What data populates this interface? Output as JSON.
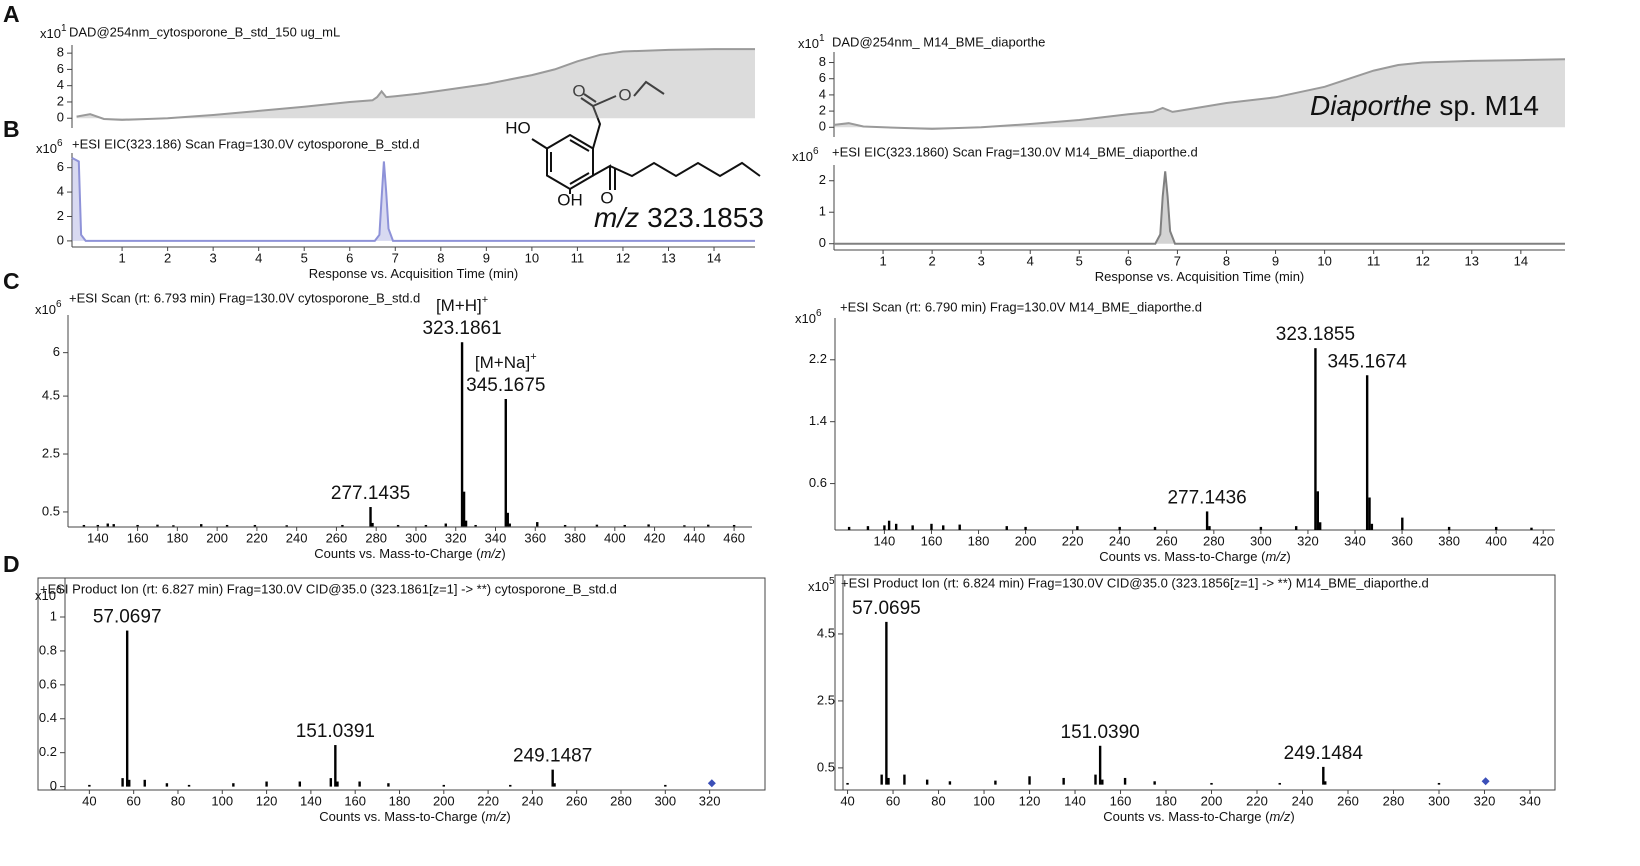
{
  "chart_data": [
    {
      "type": "line",
      "panel": "A",
      "title": "DAD@254nm_cytosporone_B_std_150 ug_mL",
      "scale": "x10",
      "scale_exp": "1",
      "xlim": [
        -0.1,
        14.9
      ],
      "ylim": [
        -1.2,
        9
      ],
      "yticks": [
        0,
        2,
        4,
        6,
        8
      ],
      "color": "#9a9a9a",
      "x": [
        0,
        0.3,
        0.6,
        1,
        2,
        3,
        4,
        5,
        6,
        6.5,
        6.6,
        6.7,
        6.8,
        7,
        7.5,
        8,
        9,
        10,
        10.5,
        11,
        11.5,
        12,
        13,
        14,
        14.9
      ],
      "values": [
        0.2,
        0.5,
        -0.1,
        -0.2,
        0,
        0.4,
        0.9,
        1.4,
        2.0,
        2.2,
        2.6,
        3.3,
        2.6,
        2.7,
        3.0,
        3.4,
        4.2,
        5.3,
        6.0,
        7.0,
        7.8,
        8.2,
        8.4,
        8.5,
        8.5
      ]
    },
    {
      "type": "line",
      "title": "DAD@254nm_ M14_BME_diaporthe",
      "scale": "x10",
      "scale_exp": "1",
      "xlim": [
        0,
        14.9
      ],
      "ylim": [
        -1.2,
        9.3
      ],
      "yticks": [
        0,
        2,
        4,
        6,
        8
      ],
      "color": "#9a9a9a",
      "annotation": {
        "italic": "Diaporthe",
        "text": "sp. M14"
      },
      "x": [
        0,
        0.3,
        0.6,
        1,
        2,
        3,
        4,
        5,
        6,
        6.5,
        6.7,
        6.9,
        7,
        8,
        9,
        10,
        10.5,
        11,
        11.5,
        12,
        13,
        14,
        14.9
      ],
      "values": [
        0.3,
        0.5,
        0.1,
        0,
        -0.2,
        0,
        0.4,
        0.9,
        1.6,
        1.9,
        2.4,
        1.9,
        2.0,
        3.0,
        3.7,
        5.0,
        6.0,
        7.0,
        7.7,
        8.0,
        8.2,
        8.3,
        8.4
      ]
    },
    {
      "type": "line",
      "panel": "B",
      "title": "+ESI EIC(323.186) Scan Frag=130.0V cytosporone_B_std.d",
      "scale": "x10",
      "scale_exp": "6",
      "x_label": "Response vs. Acquisition Time (min)",
      "xlim": [
        -0.1,
        14.9
      ],
      "xticks": [
        1,
        2,
        3,
        4,
        5,
        6,
        7,
        8,
        9,
        10,
        11,
        12,
        13,
        14
      ],
      "ylim": [
        -0.5,
        7.2
      ],
      "yticks": [
        0,
        2,
        4,
        6
      ],
      "color": "#8e92d8",
      "annotation": {
        "italic": "m/z",
        "text": "323.1853"
      },
      "x": [
        -0.1,
        0.05,
        0.1,
        0.2,
        6.55,
        6.65,
        6.7,
        6.75,
        6.8,
        6.85,
        6.95,
        14.9
      ],
      "values": [
        6.8,
        6.5,
        0.5,
        0,
        0,
        0.5,
        3.5,
        6.5,
        4.0,
        1.0,
        0,
        0
      ]
    },
    {
      "type": "line",
      "title": "+ESI EIC(323.1860) Scan Frag=130.0V M14_BME_diaporthe.d",
      "scale": "x10",
      "scale_exp": "6",
      "x_label": "Response vs. Acquisition Time (min)",
      "xlim": [
        0,
        14.9
      ],
      "xticks": [
        1,
        2,
        3,
        4,
        5,
        6,
        7,
        8,
        9,
        10,
        11,
        12,
        13,
        14
      ],
      "ylim": [
        -0.2,
        2.5
      ],
      "yticks": [
        0,
        1,
        2
      ],
      "color": "#808080",
      "x": [
        0,
        6.55,
        6.65,
        6.7,
        6.75,
        6.8,
        6.85,
        6.95,
        14.9
      ],
      "values": [
        0,
        0,
        0.3,
        1.5,
        2.3,
        1.5,
        0.4,
        0,
        0
      ]
    },
    {
      "type": "bar",
      "panel": "C",
      "title": "+ESI Scan (rt: 6.793 min) Frag=130.0V cytosporone_B_std.d",
      "scale": "x10",
      "scale_exp": "6",
      "x_label": "Counts vs. Mass-to-Charge (",
      "x_label_italic": "m/z",
      "x_label_end": ")",
      "xlim": [
        125,
        469
      ],
      "xticks": [
        140,
        160,
        180,
        200,
        220,
        240,
        260,
        280,
        300,
        320,
        340,
        360,
        380,
        400,
        420,
        440,
        460
      ],
      "ylim": [
        -0.02,
        7.3
      ],
      "yticks": [
        0.5,
        2.5,
        4.5,
        6
      ],
      "color": "#000000",
      "x": [
        133,
        140,
        145,
        148,
        160,
        170,
        178,
        192,
        205,
        219,
        235,
        263,
        277.1435,
        278.15,
        291,
        305,
        315,
        323.1861,
        324.19,
        325.19,
        330,
        345.1675,
        346.17,
        347.17,
        361,
        375,
        391,
        405,
        417,
        435,
        447,
        460
      ],
      "values": [
        0.05,
        0.05,
        0.1,
        0.08,
        0.05,
        0.06,
        0.04,
        0.08,
        0.05,
        0.05,
        0.04,
        0.05,
        0.67,
        0.12,
        0.05,
        0.05,
        0.1,
        6.36,
        1.2,
        0.2,
        0.05,
        4.4,
        0.47,
        0.1,
        0.15,
        0.05,
        0.06,
        0.05,
        0.07,
        0.04,
        0.06,
        0.05
      ],
      "x_labels": [
        null,
        null,
        null,
        null,
        null,
        null,
        null,
        null,
        null,
        null,
        null,
        null,
        "277.1435",
        null,
        null,
        null,
        null,
        "323.1861",
        null,
        null,
        null,
        "345.1675",
        null,
        null,
        null,
        null,
        null,
        null,
        null,
        null,
        null,
        null
      ],
      "adduct_labels": [
        null,
        null,
        null,
        null,
        null,
        null,
        null,
        null,
        null,
        null,
        null,
        null,
        null,
        null,
        null,
        null,
        null,
        {
          "text": "[M+H]",
          "sup": "+"
        },
        null,
        null,
        null,
        {
          "text": "[M+Na]",
          "sup": "+"
        },
        null,
        null,
        null,
        null,
        null,
        null,
        null,
        null,
        null,
        null
      ]
    },
    {
      "type": "bar",
      "title": "+ESI Scan (rt: 6.790 min) Frag=130.0V M14_BME_diaporthe.d",
      "scale": "x10",
      "scale_exp": "6",
      "x_label": "Counts vs. Mass-to-Charge (",
      "x_label_italic": "m/z",
      "x_label_end": ")",
      "xlim": [
        119,
        425
      ],
      "xticks": [
        140,
        160,
        180,
        200,
        220,
        240,
        260,
        280,
        300,
        320,
        340,
        360,
        380,
        400,
        420
      ],
      "ylim": [
        0,
        2.74
      ],
      "yticks": [
        0.6,
        1.4,
        2.2
      ],
      "color": "#000000",
      "x": [
        125,
        133,
        140,
        142,
        145,
        152,
        160,
        165,
        172,
        192,
        200,
        222,
        240,
        255,
        277.1436,
        278.15,
        300,
        315,
        323.1855,
        324.19,
        325.19,
        345.1674,
        346.17,
        347.17,
        360.1,
        380,
        400,
        415
      ],
      "values": [
        0.04,
        0.05,
        0.06,
        0.12,
        0.08,
        0.06,
        0.08,
        0.06,
        0.07,
        0.05,
        0.04,
        0.05,
        0.04,
        0.04,
        0.24,
        0.05,
        0.04,
        0.05,
        2.35,
        0.5,
        0.1,
        2.0,
        0.42,
        0.08,
        0.16,
        0.04,
        0.04,
        0.03
      ],
      "x_labels": [
        null,
        null,
        null,
        null,
        null,
        null,
        null,
        null,
        null,
        null,
        null,
        null,
        null,
        null,
        "277.1436",
        null,
        null,
        null,
        "323.1855",
        null,
        null,
        "345.1674",
        null,
        null,
        null,
        null,
        null,
        null
      ]
    },
    {
      "type": "bar",
      "panel": "D",
      "frame": true,
      "title": "+ESI Product Ion (rt: 6.827 min) Frag=130.0V CID@35.0 (323.1861[z=1] -> **) cytosporone_B_std.d",
      "scale": "x10",
      "scale_exp": "6",
      "x_label": "Counts vs. Mass-to-Charge (",
      "x_label_italic": "m/z",
      "x_label_end": ")",
      "xlim": [
        29,
        345
      ],
      "xticks": [
        40,
        60,
        80,
        100,
        120,
        140,
        160,
        180,
        200,
        220,
        240,
        260,
        280,
        300,
        320
      ],
      "ylim": [
        -0.02,
        1.23
      ],
      "yticks": [
        0,
        0.2,
        0.4,
        0.6,
        0.8,
        1
      ],
      "color": "#000000",
      "precursor": {
        "x": 321,
        "y": 0.02,
        "color": "#3b4fb8"
      },
      "x": [
        40,
        55,
        57.0697,
        58,
        65,
        75,
        85,
        105,
        120,
        135,
        149,
        151.0391,
        152,
        162,
        175,
        200,
        230,
        249.1487,
        250,
        300
      ],
      "values": [
        0.01,
        0.05,
        0.92,
        0.04,
        0.04,
        0.02,
        0.01,
        0.02,
        0.03,
        0.03,
        0.05,
        0.245,
        0.03,
        0.03,
        0.02,
        0.01,
        0.01,
        0.1,
        0.02,
        0.01
      ],
      "x_labels": [
        null,
        null,
        "57.0697",
        null,
        null,
        null,
        null,
        null,
        null,
        null,
        null,
        "151.0391",
        null,
        null,
        null,
        null,
        null,
        "249.1487",
        null,
        null
      ]
    },
    {
      "type": "bar",
      "frame": true,
      "title": "+ESI Product Ion (rt: 6.824 min) Frag=130.0V CID@35.0 (323.1856[z=1] -> **) M14_BME_diaporthe.d",
      "scale": "x10",
      "scale_exp": "5",
      "x_label": "Counts vs. Mass-to-Charge (",
      "x_label_italic": "m/z",
      "x_label_end": ")",
      "xlim": [
        38,
        351
      ],
      "xticks": [
        40,
        60,
        80,
        100,
        120,
        140,
        160,
        180,
        200,
        220,
        240,
        260,
        280,
        300,
        320,
        340
      ],
      "ylim": [
        -0.16,
        6.26
      ],
      "yticks": [
        0.5,
        2.5,
        4.5
      ],
      "color": "#000000",
      "precursor": {
        "x": 320.5,
        "y": 0.1,
        "color": "#3b4fb8"
      },
      "x": [
        40,
        55,
        57.0695,
        58,
        65,
        75,
        85,
        105,
        120,
        135,
        149,
        151.039,
        152,
        162,
        175,
        200,
        230,
        249.1484,
        250,
        300
      ],
      "values": [
        0.05,
        0.3,
        4.86,
        0.2,
        0.3,
        0.15,
        0.1,
        0.12,
        0.25,
        0.2,
        0.3,
        1.16,
        0.15,
        0.2,
        0.1,
        0.05,
        0.05,
        0.53,
        0.1,
        0.05
      ],
      "x_labels": [
        null,
        null,
        "57.0695",
        null,
        null,
        null,
        null,
        null,
        null,
        null,
        null,
        "151.0390",
        null,
        null,
        null,
        null,
        null,
        "249.1484",
        null,
        null
      ]
    }
  ],
  "structure": {
    "labels": [
      "HO",
      "OH",
      "O",
      "O",
      "O"
    ]
  }
}
